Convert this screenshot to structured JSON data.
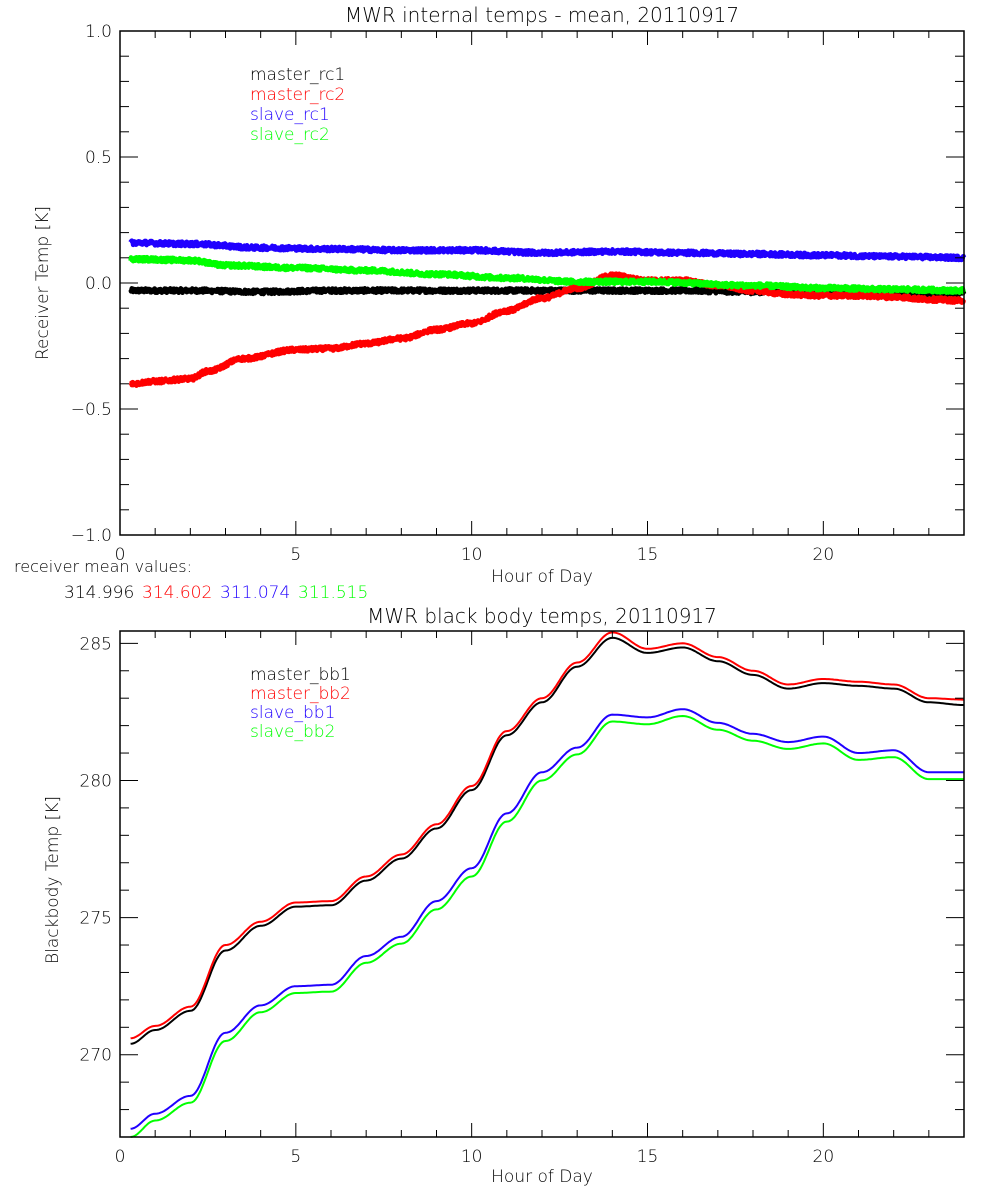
{
  "chart_data": [
    {
      "type": "line",
      "title": "MWR internal temps - mean, 20110917",
      "xlabel": "Hour of Day",
      "ylabel": "Receiver Temp [K]",
      "xlim": [
        0,
        24
      ],
      "ylim": [
        -1.0,
        1.0
      ],
      "x_ticks": [
        0,
        5,
        10,
        15,
        20
      ],
      "x_tick_labels": [
        "0",
        "5",
        "10",
        "15",
        "20"
      ],
      "x_minor_step": 1,
      "y_ticks": [
        -1.0,
        -0.5,
        0.0,
        0.5,
        1.0
      ],
      "y_tick_labels": [
        "-1.0",
        "-0.5",
        "0.0",
        "0.5",
        "1.0"
      ],
      "y_minor_step": 0.1,
      "grid": false,
      "legend_position": "top-left",
      "noisy": true,
      "series": [
        {
          "name": "master_rc1",
          "color": "#000000",
          "x": [
            0.3,
            2,
            4,
            6,
            8,
            10,
            12,
            14,
            16,
            18,
            20,
            22,
            24
          ],
          "y": [
            -0.03,
            -0.03,
            -0.035,
            -0.03,
            -0.03,
            -0.03,
            -0.03,
            -0.03,
            -0.03,
            -0.035,
            -0.04,
            -0.04,
            -0.04
          ]
        },
        {
          "name": "master_rc2",
          "color": "#ff0000",
          "x": [
            0.3,
            1,
            2,
            2.5,
            3.5,
            5,
            6,
            7,
            8,
            9,
            10,
            11,
            12,
            13,
            14,
            15,
            16,
            17,
            18,
            19,
            20,
            21,
            22,
            23,
            24
          ],
          "y": [
            -0.4,
            -0.39,
            -0.38,
            -0.35,
            -0.3,
            -0.265,
            -0.26,
            -0.24,
            -0.22,
            -0.185,
            -0.16,
            -0.11,
            -0.06,
            -0.02,
            0.03,
            0.01,
            0.01,
            -0.01,
            -0.03,
            -0.045,
            -0.05,
            -0.05,
            -0.055,
            -0.065,
            -0.07
          ]
        },
        {
          "name": "slave_rc1",
          "color": "#2000ff",
          "x": [
            0.3,
            2,
            4,
            6,
            8,
            10,
            12,
            14,
            16,
            18,
            20,
            22,
            24
          ],
          "y": [
            0.16,
            0.155,
            0.14,
            0.135,
            0.13,
            0.13,
            0.12,
            0.125,
            0.12,
            0.115,
            0.11,
            0.105,
            0.1
          ]
        },
        {
          "name": "slave_rc2",
          "color": "#00ff00",
          "x": [
            0.3,
            2,
            3,
            5,
            7,
            9,
            11,
            13,
            15,
            18,
            20,
            22,
            24
          ],
          "y": [
            0.095,
            0.09,
            0.07,
            0.06,
            0.05,
            0.035,
            0.02,
            0.005,
            0.005,
            -0.01,
            -0.02,
            -0.025,
            -0.03
          ]
        }
      ],
      "annotation": {
        "label": "receiver mean values:",
        "values": [
          {
            "text": "314.996",
            "color": "#000000"
          },
          {
            "text": "314.602",
            "color": "#ff0000"
          },
          {
            "text": "311.074",
            "color": "#2000ff"
          },
          {
            "text": "311.515",
            "color": "#00ff00"
          }
        ]
      }
    },
    {
      "type": "line",
      "title": "MWR black body temps, 20110917",
      "xlabel": "Hour of Day",
      "ylabel": "Blackbody Temp [K]",
      "xlim": [
        0,
        24
      ],
      "ylim": [
        267.0,
        285.45
      ],
      "x_ticks": [
        0,
        5,
        10,
        15,
        20
      ],
      "x_tick_labels": [
        "0",
        "5",
        "10",
        "15",
        "20"
      ],
      "x_minor_step": 1,
      "y_ticks": [
        270,
        275,
        280,
        285
      ],
      "y_tick_labels": [
        "270",
        "275",
        "280",
        "285"
      ],
      "y_minor_step": 1,
      "grid": false,
      "legend_position": "top-left",
      "noisy": false,
      "series": [
        {
          "name": "master_bb1",
          "color": "#000000",
          "x": [
            0.3,
            1,
            2,
            3,
            4,
            5,
            6,
            7,
            8,
            9,
            10,
            11,
            12,
            13,
            14,
            15,
            16,
            17,
            18,
            19,
            20,
            21,
            22,
            23,
            24
          ],
          "y": [
            270.4,
            270.9,
            271.6,
            273.8,
            274.7,
            275.4,
            275.45,
            276.35,
            277.15,
            278.25,
            279.65,
            281.65,
            282.85,
            284.15,
            285.2,
            284.65,
            284.85,
            284.35,
            283.85,
            283.35,
            283.55,
            283.45,
            283.35,
            282.85,
            282.75
          ]
        },
        {
          "name": "master_bb2",
          "color": "#ff0000",
          "x": [
            0.3,
            1,
            2,
            3,
            4,
            5,
            6,
            7,
            8,
            9,
            10,
            11,
            12,
            13,
            14,
            15,
            16,
            17,
            18,
            19,
            20,
            21,
            22,
            23,
            24
          ],
          "y": [
            270.6,
            271.05,
            271.75,
            274.0,
            274.85,
            275.55,
            275.6,
            276.5,
            277.3,
            278.4,
            279.8,
            281.8,
            283.0,
            284.3,
            285.4,
            284.8,
            285.0,
            284.5,
            284.0,
            283.5,
            283.7,
            283.6,
            283.5,
            283.0,
            282.95
          ]
        },
        {
          "name": "slave_bb1",
          "color": "#2000ff",
          "x": [
            0.3,
            1,
            2,
            3,
            4,
            5,
            6,
            7,
            8,
            9,
            10,
            11,
            12,
            13,
            14,
            15,
            16,
            17,
            18,
            19,
            20,
            21,
            22,
            23,
            24
          ],
          "y": [
            267.3,
            267.85,
            268.5,
            270.8,
            271.8,
            272.5,
            272.55,
            273.6,
            274.3,
            275.6,
            276.8,
            278.8,
            280.3,
            281.2,
            282.4,
            282.3,
            282.6,
            282.1,
            281.7,
            281.4,
            281.6,
            281.0,
            281.1,
            280.3,
            280.3
          ]
        },
        {
          "name": "slave_bb2",
          "color": "#00ff00",
          "x": [
            0.3,
            1,
            2,
            3,
            4,
            5,
            6,
            7,
            8,
            9,
            10,
            11,
            12,
            13,
            14,
            15,
            16,
            17,
            18,
            19,
            20,
            21,
            22,
            23,
            24
          ],
          "y": [
            267.0,
            267.6,
            268.25,
            270.5,
            271.55,
            272.25,
            272.3,
            273.35,
            274.05,
            275.3,
            276.5,
            278.5,
            280.0,
            280.95,
            282.15,
            282.05,
            282.35,
            281.85,
            281.45,
            281.15,
            281.35,
            280.75,
            280.85,
            280.05,
            280.05
          ]
        }
      ]
    }
  ]
}
